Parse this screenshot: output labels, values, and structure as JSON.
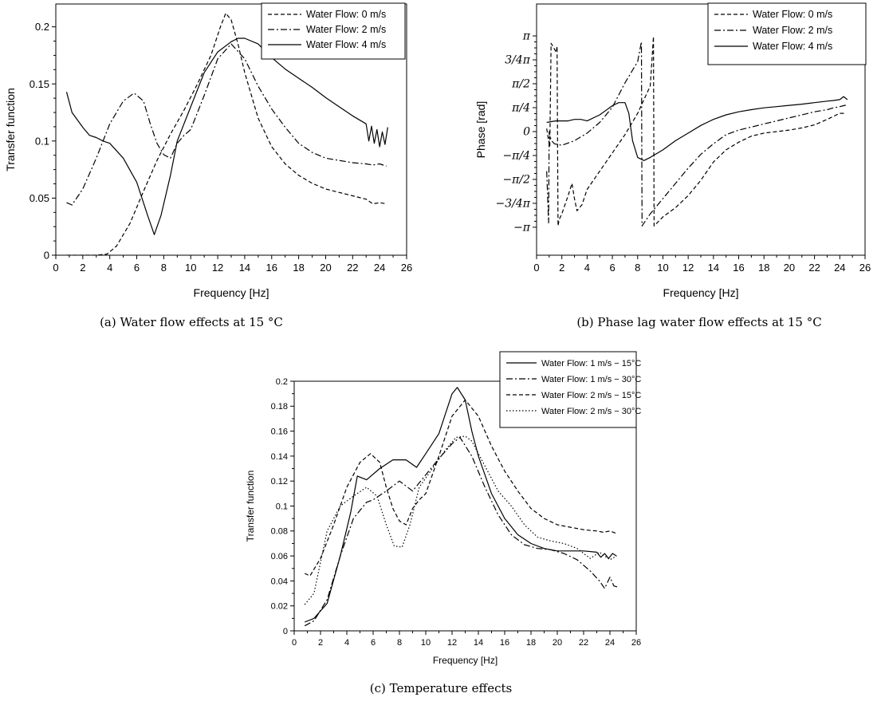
{
  "chart_data": [
    {
      "id": "a",
      "type": "line",
      "title": "",
      "caption": "(a) Water flow effects at 15 °C",
      "xlabel": "Frequency [Hz]",
      "ylabel": "Transfer function",
      "xlim": [
        0,
        26
      ],
      "ylim": [
        0,
        0.22
      ],
      "xticks": [
        0,
        2,
        4,
        6,
        8,
        10,
        12,
        14,
        16,
        18,
        20,
        22,
        24,
        26
      ],
      "yticks": [
        0,
        0.05,
        0.1,
        0.15,
        0.2
      ],
      "ytick_labels": [
        "0",
        "0.05",
        "0.1",
        "0.15",
        "0.2"
      ],
      "grid": false,
      "legend_position": "top-right",
      "series": [
        {
          "name": "Water Flow: 0 m/s",
          "style": "dashed",
          "x": [
            0.8,
            2,
            3,
            3.8,
            4.5,
            5.5,
            6.5,
            7.5,
            8.5,
            9.5,
            10.5,
            11.5,
            12.2,
            12.6,
            13,
            13.5,
            14,
            15,
            16,
            17,
            18,
            19,
            20,
            21,
            22,
            23,
            23.5,
            24,
            24.5
          ],
          "y": [
            0,
            0,
            0,
            0.001,
            0.008,
            0.028,
            0.056,
            0.083,
            0.106,
            0.127,
            0.15,
            0.175,
            0.2,
            0.212,
            0.206,
            0.185,
            0.16,
            0.12,
            0.095,
            0.08,
            0.07,
            0.063,
            0.058,
            0.055,
            0.052,
            0.049,
            0.045,
            0.046,
            0.045
          ]
        },
        {
          "name": "Water Flow: 2 m/s",
          "style": "dashdot",
          "x": [
            0.8,
            1.2,
            2,
            3,
            4,
            5,
            5.8,
            6.5,
            7,
            7.5,
            8,
            8.5,
            9,
            9.5,
            10,
            11,
            12,
            13,
            14,
            15,
            16,
            17,
            18,
            19,
            20,
            21,
            22,
            23,
            23.5,
            24,
            24.5
          ],
          "y": [
            0.046,
            0.044,
            0.058,
            0.085,
            0.115,
            0.135,
            0.142,
            0.135,
            0.115,
            0.098,
            0.088,
            0.085,
            0.098,
            0.105,
            0.11,
            0.14,
            0.172,
            0.185,
            0.172,
            0.148,
            0.128,
            0.112,
            0.098,
            0.09,
            0.085,
            0.083,
            0.081,
            0.08,
            0.079,
            0.08,
            0.078
          ]
        },
        {
          "name": "Water Flow: 4 m/s",
          "style": "solid",
          "x": [
            0.8,
            1.2,
            2,
            2.5,
            3,
            3.5,
            4,
            5,
            6,
            6.8,
            7.3,
            7.8,
            8.5,
            9,
            10,
            11,
            12,
            13,
            13.5,
            14,
            15,
            16,
            17,
            18,
            19,
            20,
            21,
            22,
            23,
            23.2,
            23.4,
            23.6,
            23.8,
            24,
            24.2,
            24.4,
            24.6
          ],
          "y": [
            0.143,
            0.125,
            0.112,
            0.105,
            0.103,
            0.1,
            0.098,
            0.085,
            0.064,
            0.035,
            0.018,
            0.035,
            0.07,
            0.1,
            0.13,
            0.16,
            0.178,
            0.187,
            0.19,
            0.19,
            0.185,
            0.173,
            0.163,
            0.155,
            0.147,
            0.138,
            0.13,
            0.122,
            0.115,
            0.1,
            0.113,
            0.098,
            0.11,
            0.095,
            0.108,
            0.097,
            0.112
          ]
        }
      ]
    },
    {
      "id": "b",
      "type": "line",
      "title": "",
      "caption": "(b) Phase lag water flow effects at 15 °C",
      "xlabel": "Frequency [Hz]",
      "ylabel": "Phase [rad]",
      "xlim": [
        0,
        26
      ],
      "ylim": [
        -4.06,
        4.19
      ],
      "xticks": [
        0,
        2,
        4,
        6,
        8,
        10,
        12,
        14,
        16,
        18,
        20,
        22,
        24,
        26
      ],
      "yticks": [
        -3.1416,
        -2.3562,
        -1.5708,
        -0.7854,
        0,
        0.7854,
        1.5708,
        2.3562,
        3.1416
      ],
      "ytick_labels": [
        "−π",
        "−3/4π",
        "−π/2",
        "−π/4",
        "0",
        "π/4",
        "π/2",
        "3/4π",
        "π"
      ],
      "grid": false,
      "legend_position": "top-right",
      "series": [
        {
          "name": "Water Flow: 0 m/s",
          "style": "dashed",
          "x": [
            0.8,
            0.95,
            1.05,
            1.15,
            1.3,
            1.55,
            1.62,
            1.7,
            1.78,
            2,
            2.5,
            2.8,
            3,
            3.2,
            3.6,
            4,
            5,
            6,
            7,
            8,
            9,
            9.25,
            9.3,
            10,
            11,
            12,
            13,
            14,
            15,
            16,
            17,
            18,
            19,
            20,
            21,
            22,
            23,
            23.5,
            24,
            24.5
          ],
          "y": [
            0.1,
            -0.3,
            -0.5,
            2.9,
            2.8,
            2.6,
            2.8,
            -3.1,
            -2.9,
            -2.7,
            -2.1,
            -1.7,
            -2.2,
            -2.6,
            -2.4,
            -1.9,
            -1.3,
            -0.7,
            -0.1,
            0.6,
            1.5,
            3.12,
            -3.1,
            -2.8,
            -2.5,
            -2.1,
            -1.6,
            -1.0,
            -0.6,
            -0.35,
            -0.15,
            -0.05,
            0,
            0.05,
            0.12,
            0.22,
            0.4,
            0.5,
            0.6,
            0.6
          ]
        },
        {
          "name": "Water Flow: 2 m/s",
          "style": "dashdot",
          "x": [
            0.8,
            0.95,
            1,
            1.05,
            1.2,
            1.4,
            2,
            3,
            4,
            5,
            6,
            7,
            8,
            8.3,
            8.35,
            9,
            10,
            11,
            12,
            13,
            14,
            15,
            16,
            17,
            18,
            19,
            20,
            21,
            22,
            23,
            23.5,
            24,
            24.3,
            24.6
          ],
          "y": [
            -1.3,
            -3.0,
            0.0,
            -0.15,
            -0.3,
            -0.4,
            -0.45,
            -0.3,
            -0.05,
            0.3,
            0.8,
            1.6,
            2.3,
            2.95,
            -3.1,
            -2.7,
            -2.2,
            -1.7,
            -1.2,
            -0.75,
            -0.4,
            -0.1,
            0.05,
            0.15,
            0.25,
            0.35,
            0.45,
            0.55,
            0.65,
            0.72,
            0.78,
            0.82,
            0.85,
            0.88
          ]
        },
        {
          "name": "Water Flow: 4 m/s",
          "style": "solid",
          "x": [
            0.8,
            1.5,
            2,
            2.5,
            3,
            3.5,
            4,
            5,
            6,
            6.5,
            7,
            7.3,
            7.6,
            8,
            8.5,
            9,
            10,
            11,
            12,
            13,
            14,
            15,
            16,
            17,
            18,
            19,
            20,
            21,
            22,
            23,
            23.5,
            24,
            24.3,
            24.6
          ],
          "y": [
            0.3,
            0.35,
            0.35,
            0.35,
            0.4,
            0.4,
            0.35,
            0.55,
            0.85,
            0.95,
            0.95,
            0.6,
            -0.3,
            -0.85,
            -0.95,
            -0.85,
            -0.6,
            -0.3,
            -0.05,
            0.2,
            0.4,
            0.55,
            0.65,
            0.72,
            0.78,
            0.82,
            0.86,
            0.9,
            0.95,
            1.0,
            1.02,
            1.05,
            1.15,
            1.05
          ]
        }
      ]
    },
    {
      "id": "c",
      "type": "line",
      "title": "",
      "caption": "(c) Temperature effects",
      "xlabel": "Frequency [Hz]",
      "ylabel": "Transfer function",
      "xlim": [
        0,
        26
      ],
      "ylim": [
        0,
        0.2
      ],
      "xticks": [
        0,
        2,
        4,
        6,
        8,
        10,
        12,
        14,
        16,
        18,
        20,
        22,
        24,
        26
      ],
      "yticks": [
        0,
        0.02,
        0.04,
        0.06,
        0.08,
        0.1,
        0.12,
        0.14,
        0.16,
        0.18,
        0.2
      ],
      "ytick_labels": [
        "0",
        "0.02",
        "0.04",
        "0.06",
        "0.08",
        "0.1",
        "0.12",
        "0.14",
        "0.16",
        "0.18",
        "0.2"
      ],
      "grid": false,
      "legend_position": "top-right",
      "series": [
        {
          "name": "Water Flow: 1 m/s − 15°C",
          "style": "solid",
          "x": [
            0.8,
            1.5,
            2.5,
            3.5,
            4.3,
            4.8,
            5.5,
            6.5,
            7.5,
            8.5,
            9.3,
            10,
            11,
            12,
            12.4,
            13,
            13.5,
            14,
            15,
            16,
            17,
            18,
            19,
            20,
            21,
            22,
            23,
            23.3,
            23.6,
            23.9,
            24.2,
            24.5
          ],
          "y": [
            0.007,
            0.01,
            0.022,
            0.06,
            0.095,
            0.124,
            0.121,
            0.13,
            0.137,
            0.137,
            0.131,
            0.142,
            0.158,
            0.19,
            0.195,
            0.185,
            0.16,
            0.14,
            0.11,
            0.09,
            0.077,
            0.07,
            0.066,
            0.064,
            0.064,
            0.064,
            0.063,
            0.059,
            0.062,
            0.058,
            0.062,
            0.06
          ]
        },
        {
          "name": "Water Flow: 1 m/s − 30°C",
          "style": "dashdot",
          "x": [
            0.8,
            1.5,
            2.5,
            3.5,
            4.5,
            5.5,
            6,
            7,
            8,
            9,
            10,
            11,
            12,
            12.6,
            13.5,
            14.5,
            15.5,
            16.5,
            17.5,
            18.5,
            19.5,
            20.5,
            21.5,
            22.5,
            23.2,
            23.6,
            24,
            24.3,
            24.6
          ],
          "y": [
            0.004,
            0.008,
            0.025,
            0.06,
            0.09,
            0.103,
            0.105,
            0.112,
            0.12,
            0.112,
            0.125,
            0.138,
            0.15,
            0.155,
            0.14,
            0.115,
            0.093,
            0.077,
            0.069,
            0.066,
            0.065,
            0.062,
            0.057,
            0.048,
            0.04,
            0.034,
            0.043,
            0.036,
            0.035
          ]
        },
        {
          "name": "Water Flow: 2 m/s − 15°C",
          "style": "dashed",
          "x": [
            0.8,
            1.2,
            2,
            3,
            4,
            5,
            5.8,
            6.5,
            7,
            7.5,
            8,
            8.5,
            9,
            9.5,
            10,
            11,
            12,
            13,
            14,
            15,
            16,
            17,
            18,
            19,
            20,
            21,
            22,
            23,
            23.5,
            24,
            24.5
          ],
          "y": [
            0.046,
            0.044,
            0.058,
            0.085,
            0.115,
            0.135,
            0.142,
            0.135,
            0.115,
            0.098,
            0.088,
            0.085,
            0.098,
            0.105,
            0.11,
            0.14,
            0.172,
            0.185,
            0.172,
            0.148,
            0.128,
            0.112,
            0.098,
            0.09,
            0.085,
            0.083,
            0.081,
            0.08,
            0.079,
            0.08,
            0.078
          ]
        },
        {
          "name": "Water Flow: 2 m/s − 30°C",
          "style": "dotted",
          "x": [
            0.8,
            1.5,
            2.5,
            3.5,
            4.5,
            5.5,
            6.3,
            7,
            7.6,
            8.2,
            8.8,
            9.5,
            10.5,
            11.5,
            12.3,
            13,
            13.5,
            14.5,
            15.5,
            16.5,
            17.5,
            18.5,
            19.5,
            20.5,
            21.5,
            22.5,
            23.2,
            23.6,
            24,
            24.5
          ],
          "y": [
            0.021,
            0.03,
            0.08,
            0.1,
            0.108,
            0.115,
            0.108,
            0.085,
            0.068,
            0.067,
            0.085,
            0.115,
            0.13,
            0.145,
            0.155,
            0.156,
            0.152,
            0.132,
            0.112,
            0.1,
            0.085,
            0.075,
            0.072,
            0.07,
            0.066,
            0.058,
            0.063,
            0.06,
            0.057,
            0.06
          ]
        }
      ]
    }
  ]
}
